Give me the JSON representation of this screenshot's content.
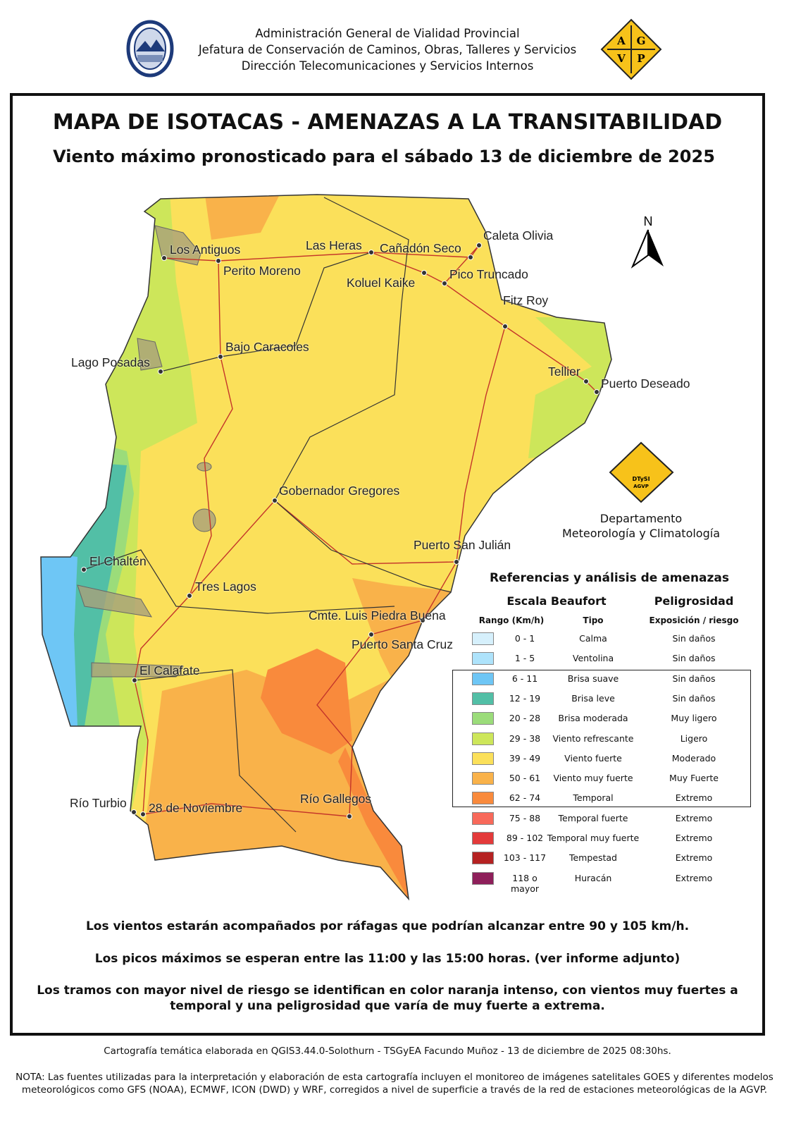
{
  "header": {
    "lines": [
      "Administración General de Vialidad Provincial",
      "Jefatura de Conservación de Caminos, Obras, Talleres y Servicios",
      "Dirección Telecomunicaciones y Servicios Internos"
    ],
    "logo_letters": [
      "A",
      "G",
      "V",
      "P"
    ]
  },
  "title": "MAPA DE ISOTACAS - AMENAZAS A LA TRANSITABILIDAD",
  "subtitle": "Viento máximo pronosticado para el sábado 13 de diciembre de 2025",
  "map": {
    "north_label": "N",
    "cities": [
      "Los Antiguos",
      "Perito Moreno",
      "Las Heras",
      "Cañadón Seco",
      "Caleta Olivia",
      "Koluel Kaike",
      "Pico Truncado",
      "Fitz Roy",
      "Bajo Caracoles",
      "Lago Posadas",
      "Tellier",
      "Puerto Deseado",
      "Gobernador Gregores",
      "Puerto San Julián",
      "El Chaltén",
      "Tres Lagos",
      "Cmte. Luis Piedra Buena",
      "Puerto Santa Cruz",
      "El Calafate",
      "Río Turbio",
      "28 de Noviembre",
      "Río Gallegos"
    ],
    "zone_colors": {
      "blue": "#6ec6f5",
      "teal": "#52bfa6",
      "green": "#9bdc7a",
      "yellowgreen": "#cde65a",
      "yellow": "#fbe05a",
      "lightorange": "#f9b24a",
      "orange": "#f98a3c"
    }
  },
  "dept": {
    "logo_text": [
      "DTySI",
      "AGVP"
    ],
    "lines": [
      "Departamento",
      "Meteorología y Climatología"
    ]
  },
  "legend": {
    "title": "Referencias y análisis de amenazas",
    "group1": "Escala Beaufort",
    "group2": "Peligrosidad",
    "col_range": "Rango (Km/h)",
    "col_type": "Tipo",
    "col_risk": "Exposición / riesgo",
    "rows": [
      {
        "range": "0 - 1",
        "type": "Calma",
        "risk": "Sin daños",
        "color": "#d6f0fc"
      },
      {
        "range": "1 - 5",
        "type": "Ventolina",
        "risk": "Sin daños",
        "color": "#aee3fb"
      },
      {
        "range": "6 - 11",
        "type": "Brisa suave",
        "risk": "Sin daños",
        "color": "#6ec6f5"
      },
      {
        "range": "12 - 19",
        "type": "Brisa leve",
        "risk": "Sin daños",
        "color": "#52bfa6"
      },
      {
        "range": "20 - 28",
        "type": "Brisa moderada",
        "risk": "Muy ligero",
        "color": "#9bdc7a"
      },
      {
        "range": "29 - 38",
        "type": "Viento refrescante",
        "risk": "Ligero",
        "color": "#cde65a"
      },
      {
        "range": "39 - 49",
        "type": "Viento fuerte",
        "risk": "Moderado",
        "color": "#fbe05a"
      },
      {
        "range": "50 - 61",
        "type": "Viento muy fuerte",
        "risk": "Muy Fuerte",
        "color": "#f9b24a"
      },
      {
        "range": "62 - 74",
        "type": "Temporal",
        "risk": "Extremo",
        "color": "#f98a3c"
      },
      {
        "range": "75 - 88",
        "type": "Temporal fuerte",
        "risk": "Extremo",
        "color": "#f8695a"
      },
      {
        "range": "89 - 102",
        "type": "Temporal muy fuerte",
        "risk": "Extremo",
        "color": "#e33a3a"
      },
      {
        "range": "103 - 117",
        "type": "Tempestad",
        "risk": "Extremo",
        "color": "#b52222"
      },
      {
        "range": "118 o mayor",
        "type": "Huracán",
        "risk": "Extremo",
        "color": "#8e1f5a"
      }
    ]
  },
  "notes": [
    "Los vientos estarán acompañados por ráfagas que podrían alcanzar entre 90 y 105 km/h.",
    "Los picos máximos se esperan entre las 11:00 y las 15:00 horas. (ver informe adjunto)",
    "Los tramos con mayor nivel de riesgo se identifican en color naranja intenso, con vientos muy fuertes a",
    "temporal y una peligrosidad que varía de muy fuerte a extrema."
  ],
  "footer": {
    "credit": "Cartografía temática elaborada en QGIS3.44.0-Solothurn - TSGyEA Facundo Muñoz - 13 de diciembre de 2025 08:30hs.",
    "note1": "NOTA: Las fuentes utilizadas para la interpretación y elaboración de esta cartografía incluyen el monitoreo de imágenes satelitales GOES y diferentes modelos",
    "note2": "meteorológicos como GFS (NOAA), ECMWF, ICON (DWD) y WRF, corregidos a nivel de superficie a través de la red de estaciones meteorológicas de la AGVP."
  }
}
